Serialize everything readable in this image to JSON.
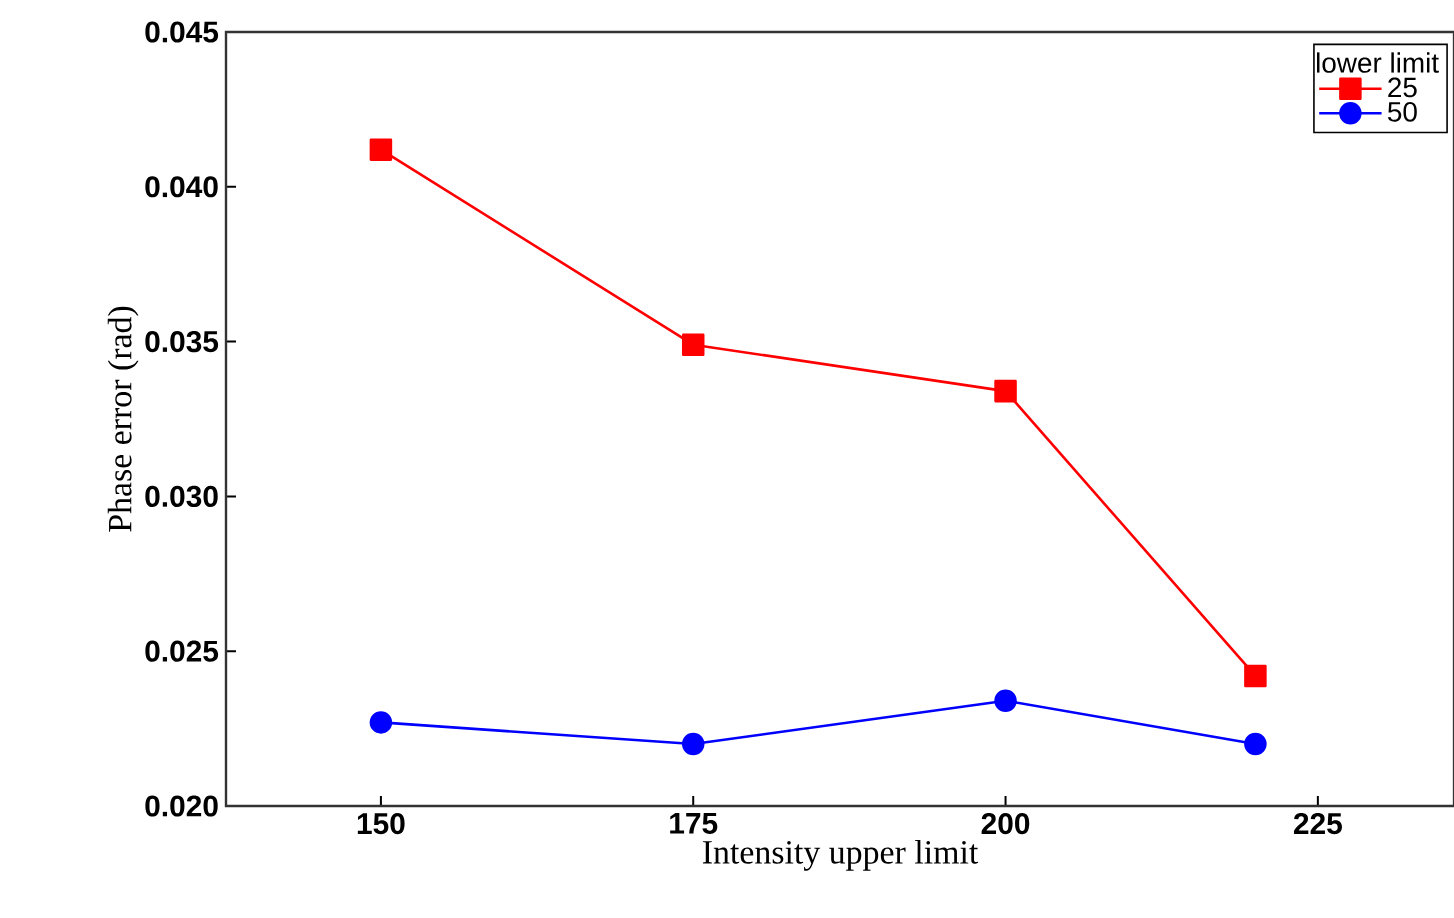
{
  "chart_data": {
    "type": "line",
    "xlabel": "Intensity upper limit",
    "ylabel": "Phase error (rad)",
    "legend_title": "lower limit",
    "x": [
      150,
      175,
      200,
      220
    ],
    "series": [
      {
        "name": "25",
        "color": "#ff0000",
        "marker": "square",
        "values": [
          0.0412,
          0.0349,
          0.0334,
          0.0242
        ]
      },
      {
        "name": "50",
        "color": "#0000ff",
        "marker": "circle",
        "values": [
          0.0227,
          0.022,
          0.0234,
          0.022
        ]
      }
    ],
    "xlim": [
      137.6,
      235.9
    ],
    "ylim": [
      0.02,
      0.045
    ],
    "xticks": [
      150,
      175,
      200,
      225
    ],
    "yticks": [
      {
        "value": 0.02,
        "label": "0.020"
      },
      {
        "value": 0.025,
        "label": "0.025"
      },
      {
        "value": 0.03,
        "label": "0.030"
      },
      {
        "value": 0.035,
        "label": "0.035"
      },
      {
        "value": 0.04,
        "label": "0.040"
      },
      {
        "value": 0.045,
        "label": "0.045"
      }
    ],
    "legend": "top right",
    "line_style": "solid"
  }
}
